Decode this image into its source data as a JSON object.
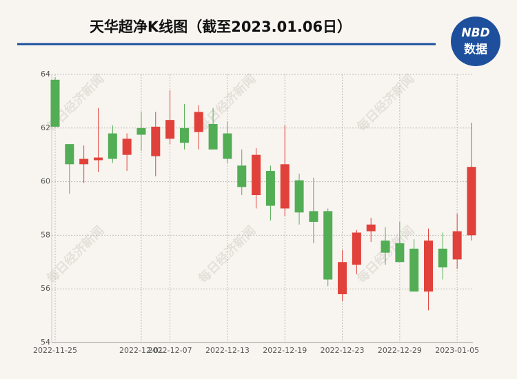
{
  "chart_data": {
    "type": "candlestick",
    "title": "天华超净K线图（截至2023.01.06日）",
    "logo": {
      "top": "NBD",
      "bottom": "数据"
    },
    "watermark": "每日经济新闻",
    "categories": [
      "2022-11-25",
      null,
      null,
      null,
      null,
      null,
      "2022-12-01",
      null,
      "2022-12-07",
      null,
      null,
      null,
      "2022-12-13",
      null,
      null,
      null,
      "2022-12-19",
      null,
      null,
      null,
      "2022-12-23",
      null,
      null,
      null,
      "2022-12-29",
      null,
      null,
      null,
      "2023-01-05",
      null
    ],
    "open": [
      63.8,
      61.4,
      60.65,
      60.8,
      61.8,
      61.0,
      62.0,
      60.95,
      61.6,
      62.0,
      61.85,
      62.15,
      61.8,
      60.6,
      59.5,
      60.4,
      59.0,
      60.05,
      58.9,
      58.9,
      55.8,
      56.9,
      58.15,
      57.8,
      57.7,
      57.5,
      55.9,
      57.5,
      57.1,
      58.0
    ],
    "high": [
      63.9,
      61.4,
      61.35,
      62.75,
      62.1,
      61.8,
      62.6,
      62.6,
      63.4,
      62.9,
      62.85,
      62.75,
      62.25,
      61.2,
      61.25,
      60.6,
      62.1,
      60.3,
      60.15,
      59.0,
      57.45,
      58.2,
      58.65,
      58.3,
      58.5,
      57.85,
      58.25,
      58.1,
      58.8,
      62.2
    ],
    "low": [
      62.05,
      59.55,
      59.95,
      60.35,
      60.7,
      60.4,
      61.15,
      60.2,
      61.4,
      61.2,
      61.2,
      61.2,
      60.7,
      59.5,
      59.0,
      58.55,
      58.7,
      58.4,
      57.7,
      56.1,
      55.55,
      56.55,
      57.75,
      56.9,
      57.0,
      55.9,
      55.2,
      56.35,
      56.75,
      57.8
    ],
    "close": [
      62.05,
      60.65,
      60.85,
      60.9,
      60.85,
      61.6,
      61.75,
      62.05,
      62.3,
      61.45,
      62.6,
      61.2,
      60.85,
      59.8,
      61.0,
      59.1,
      60.65,
      58.85,
      58.5,
      56.35,
      57.0,
      58.1,
      58.4,
      57.35,
      57.0,
      55.9,
      57.8,
      56.8,
      58.15,
      60.55
    ],
    "up_color": "#e0413a",
    "down_color": "#52ad55",
    "ylim": [
      54,
      64
    ],
    "yticks": [
      54,
      56,
      58,
      60,
      62,
      64
    ],
    "grid": true
  }
}
